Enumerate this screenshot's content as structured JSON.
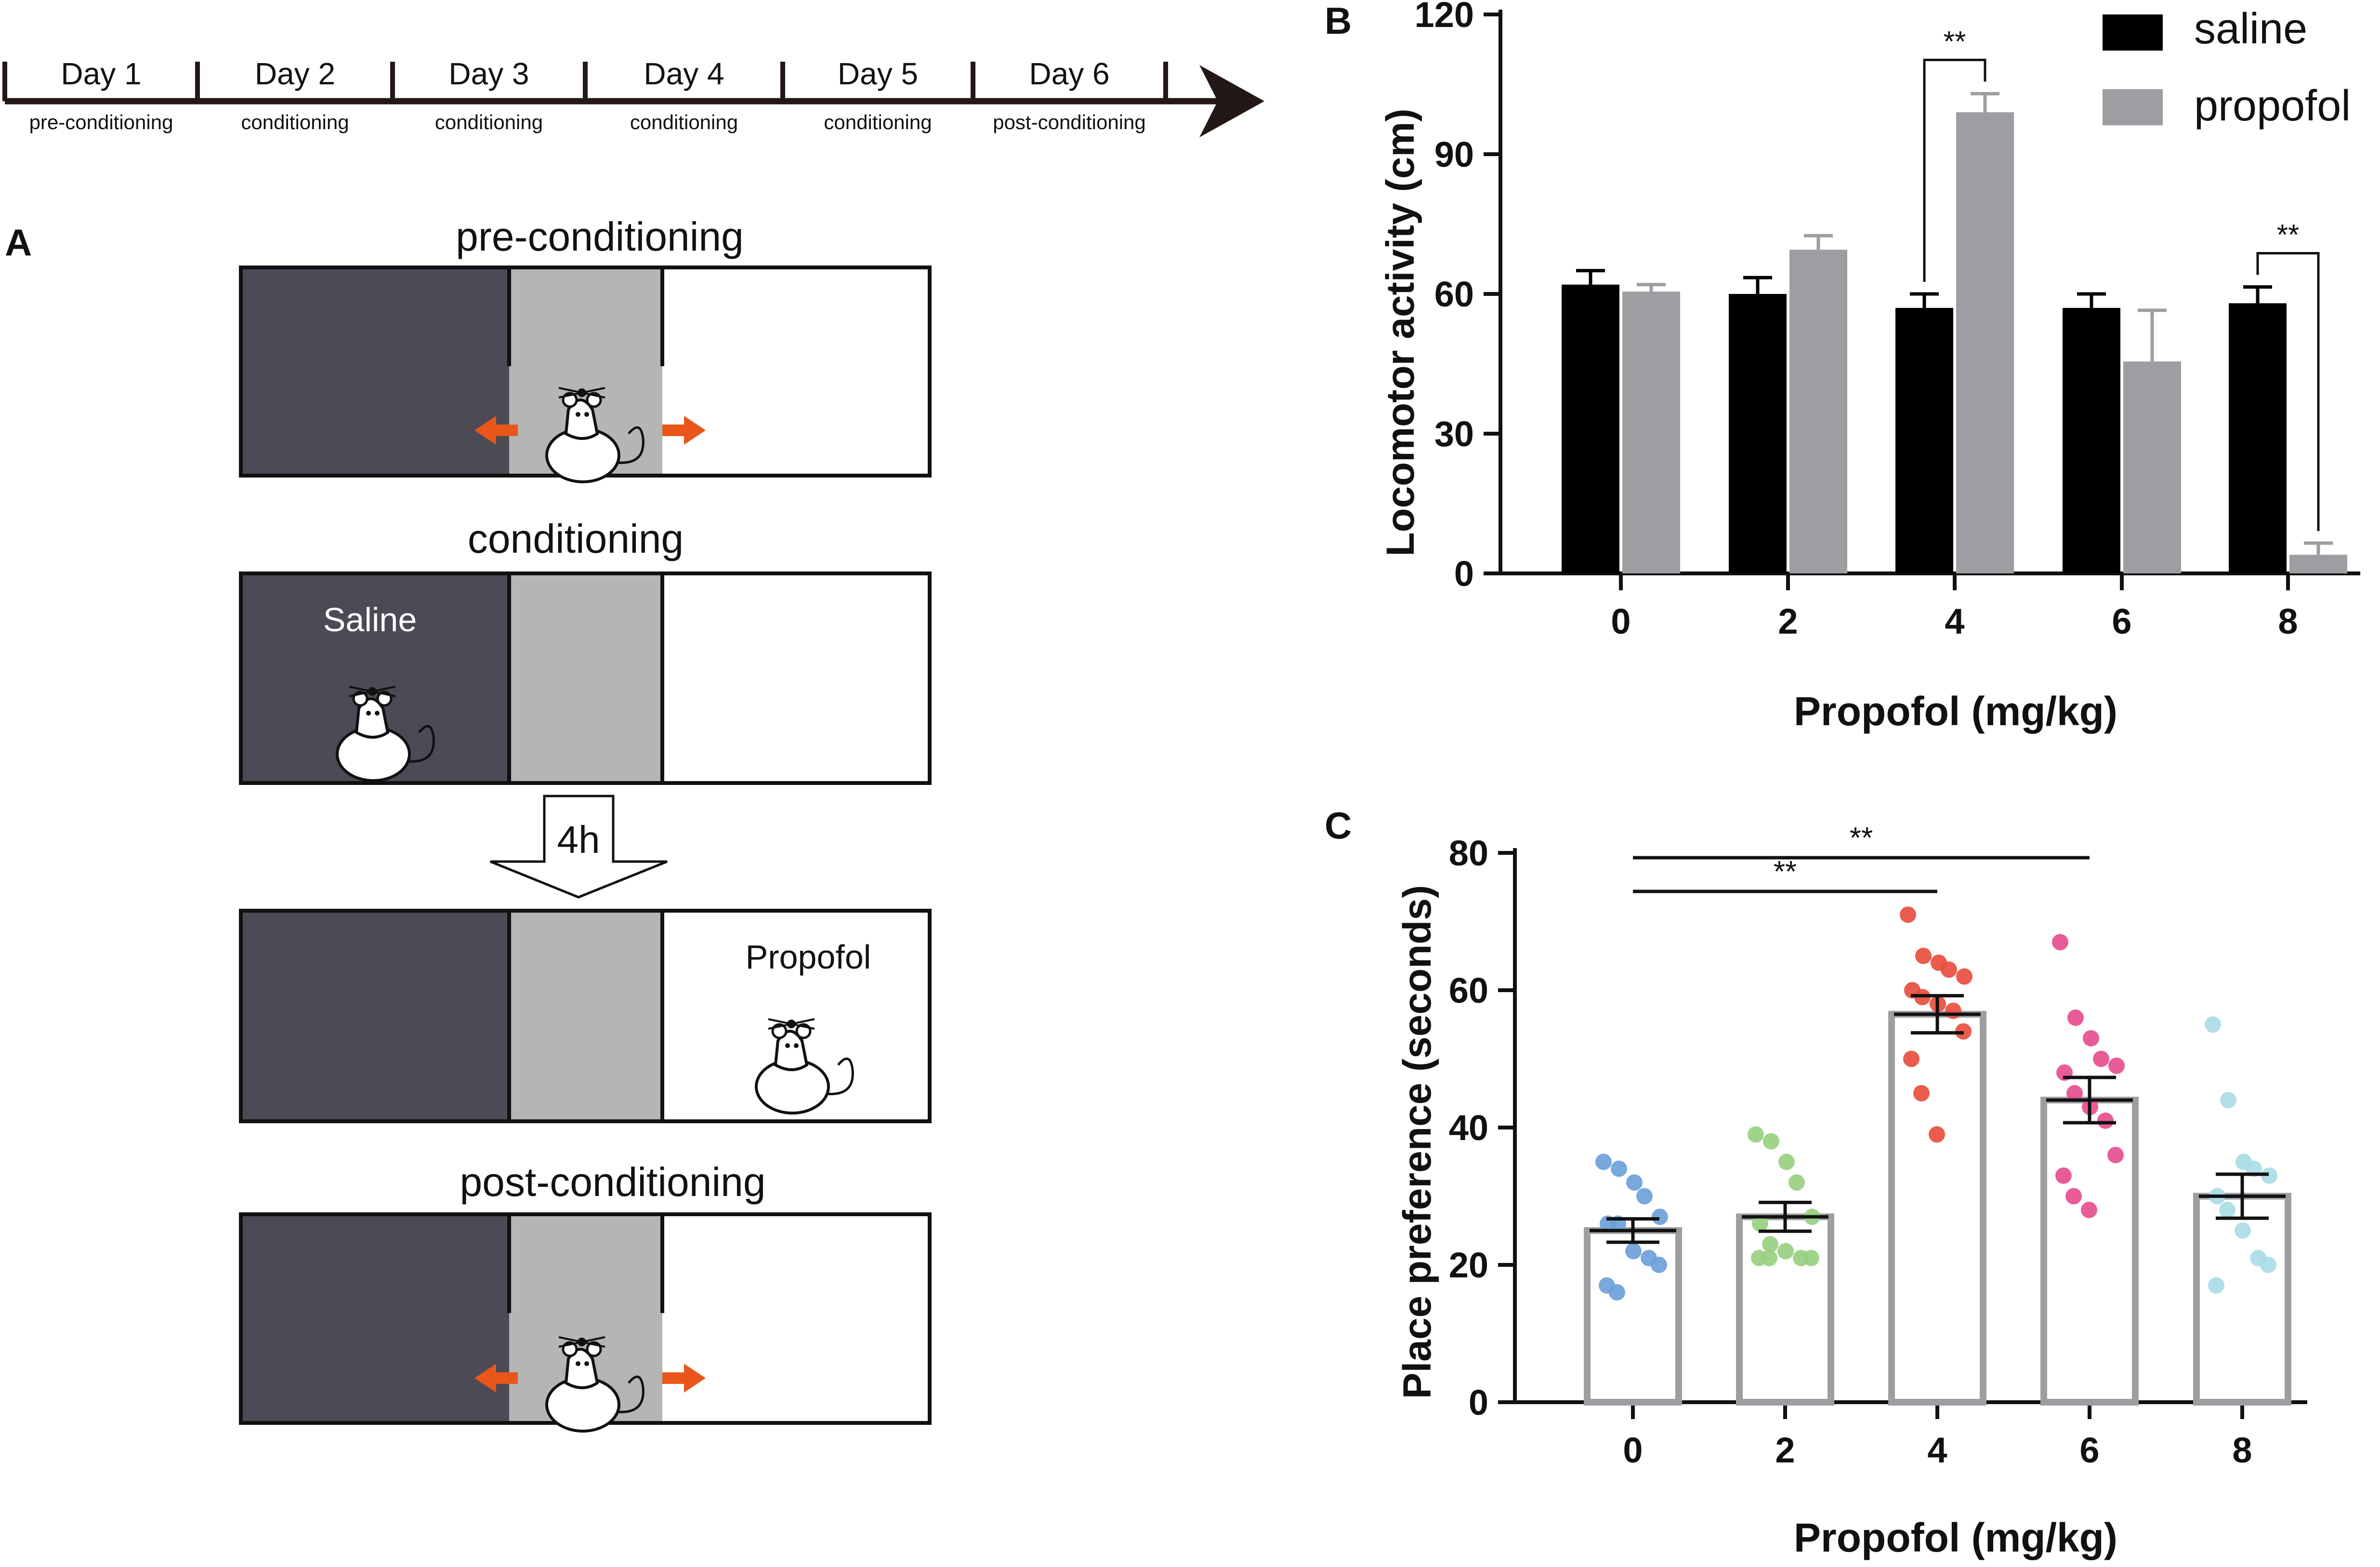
{
  "timeline": {
    "days": [
      {
        "day": "Day 1",
        "phase": "pre-conditioning"
      },
      {
        "day": "Day 2",
        "phase": "conditioning"
      },
      {
        "day": "Day 3",
        "phase": "conditioning"
      },
      {
        "day": "Day 4",
        "phase": "conditioning"
      },
      {
        "day": "Day 5",
        "phase": "conditioning"
      },
      {
        "day": "Day 6",
        "phase": "post-conditioning"
      }
    ]
  },
  "panel_a": {
    "letter": "A",
    "pre_title": "pre-conditioning",
    "cond_title": "conditioning",
    "saline_label": "Saline",
    "interval_label": "4h",
    "propofol_label": "Propofol",
    "post_title": "post-conditioning",
    "colors": {
      "dark": "#4b4a55",
      "middle": "#b4b5b4",
      "arrow": "#e8561a"
    }
  },
  "chart_data": [
    {
      "id": "B",
      "type": "bar",
      "letter": "B",
      "title": "",
      "xlabel": "Propofol (mg/kg)",
      "ylabel": "Locomotor activity (cm)",
      "categories": [
        "0",
        "2",
        "4",
        "6",
        "8"
      ],
      "yticks": [
        "0",
        "30",
        "60",
        "90",
        "120"
      ],
      "ylim": [
        0,
        120
      ],
      "series": [
        {
          "name": "saline",
          "color": "#000000",
          "values": [
            62,
            60,
            57,
            57,
            58
          ],
          "errors": [
            3,
            3.5,
            3,
            3,
            3.5
          ]
        },
        {
          "name": "propofol",
          "color": "#9d9ea1",
          "values": [
            60.5,
            69.5,
            99,
            45.5,
            4
          ],
          "errors": [
            1.5,
            3,
            4,
            11,
            2.5
          ]
        }
      ],
      "significance": [
        {
          "category": "4",
          "label": "**"
        },
        {
          "category": "8",
          "label": "**"
        }
      ],
      "legend": "top-right"
    },
    {
      "id": "C",
      "type": "bar+scatter",
      "letter": "C",
      "title": "",
      "xlabel": "Propofol (mg/kg)",
      "ylabel": "Place preference (seconds)",
      "categories": [
        "0",
        "2",
        "4",
        "6",
        "8"
      ],
      "yticks": [
        "0",
        "20",
        "40",
        "60",
        "80"
      ],
      "ylim": [
        0,
        80
      ],
      "means": [
        25,
        27,
        56.5,
        44,
        30
      ],
      "sem": [
        1.7,
        2.1,
        2.7,
        3.3,
        3.2
      ],
      "bar_color": "#9d9ea1",
      "point_colors": [
        "#6a9fd8",
        "#96cf7d",
        "#e84a3a",
        "#e54a8c",
        "#a7dbe6"
      ],
      "points": [
        [
          35,
          34,
          32,
          30,
          27,
          26,
          26,
          22,
          21,
          20,
          17,
          16
        ],
        [
          39,
          38,
          35,
          32,
          27,
          26,
          23,
          22,
          21,
          21,
          21,
          21
        ],
        [
          71,
          65,
          64,
          63,
          62,
          60,
          59,
          58,
          57,
          54,
          50,
          45,
          39
        ],
        [
          67,
          56,
          53,
          50,
          49,
          48,
          45,
          43,
          41,
          36,
          33,
          30,
          28
        ],
        [
          55,
          44,
          35,
          34,
          33,
          30,
          28,
          25,
          21,
          20,
          17
        ]
      ],
      "significance": [
        {
          "from": "0",
          "to": "6",
          "label": "**"
        },
        {
          "from": "0",
          "to": "4",
          "label": "**"
        }
      ]
    }
  ]
}
